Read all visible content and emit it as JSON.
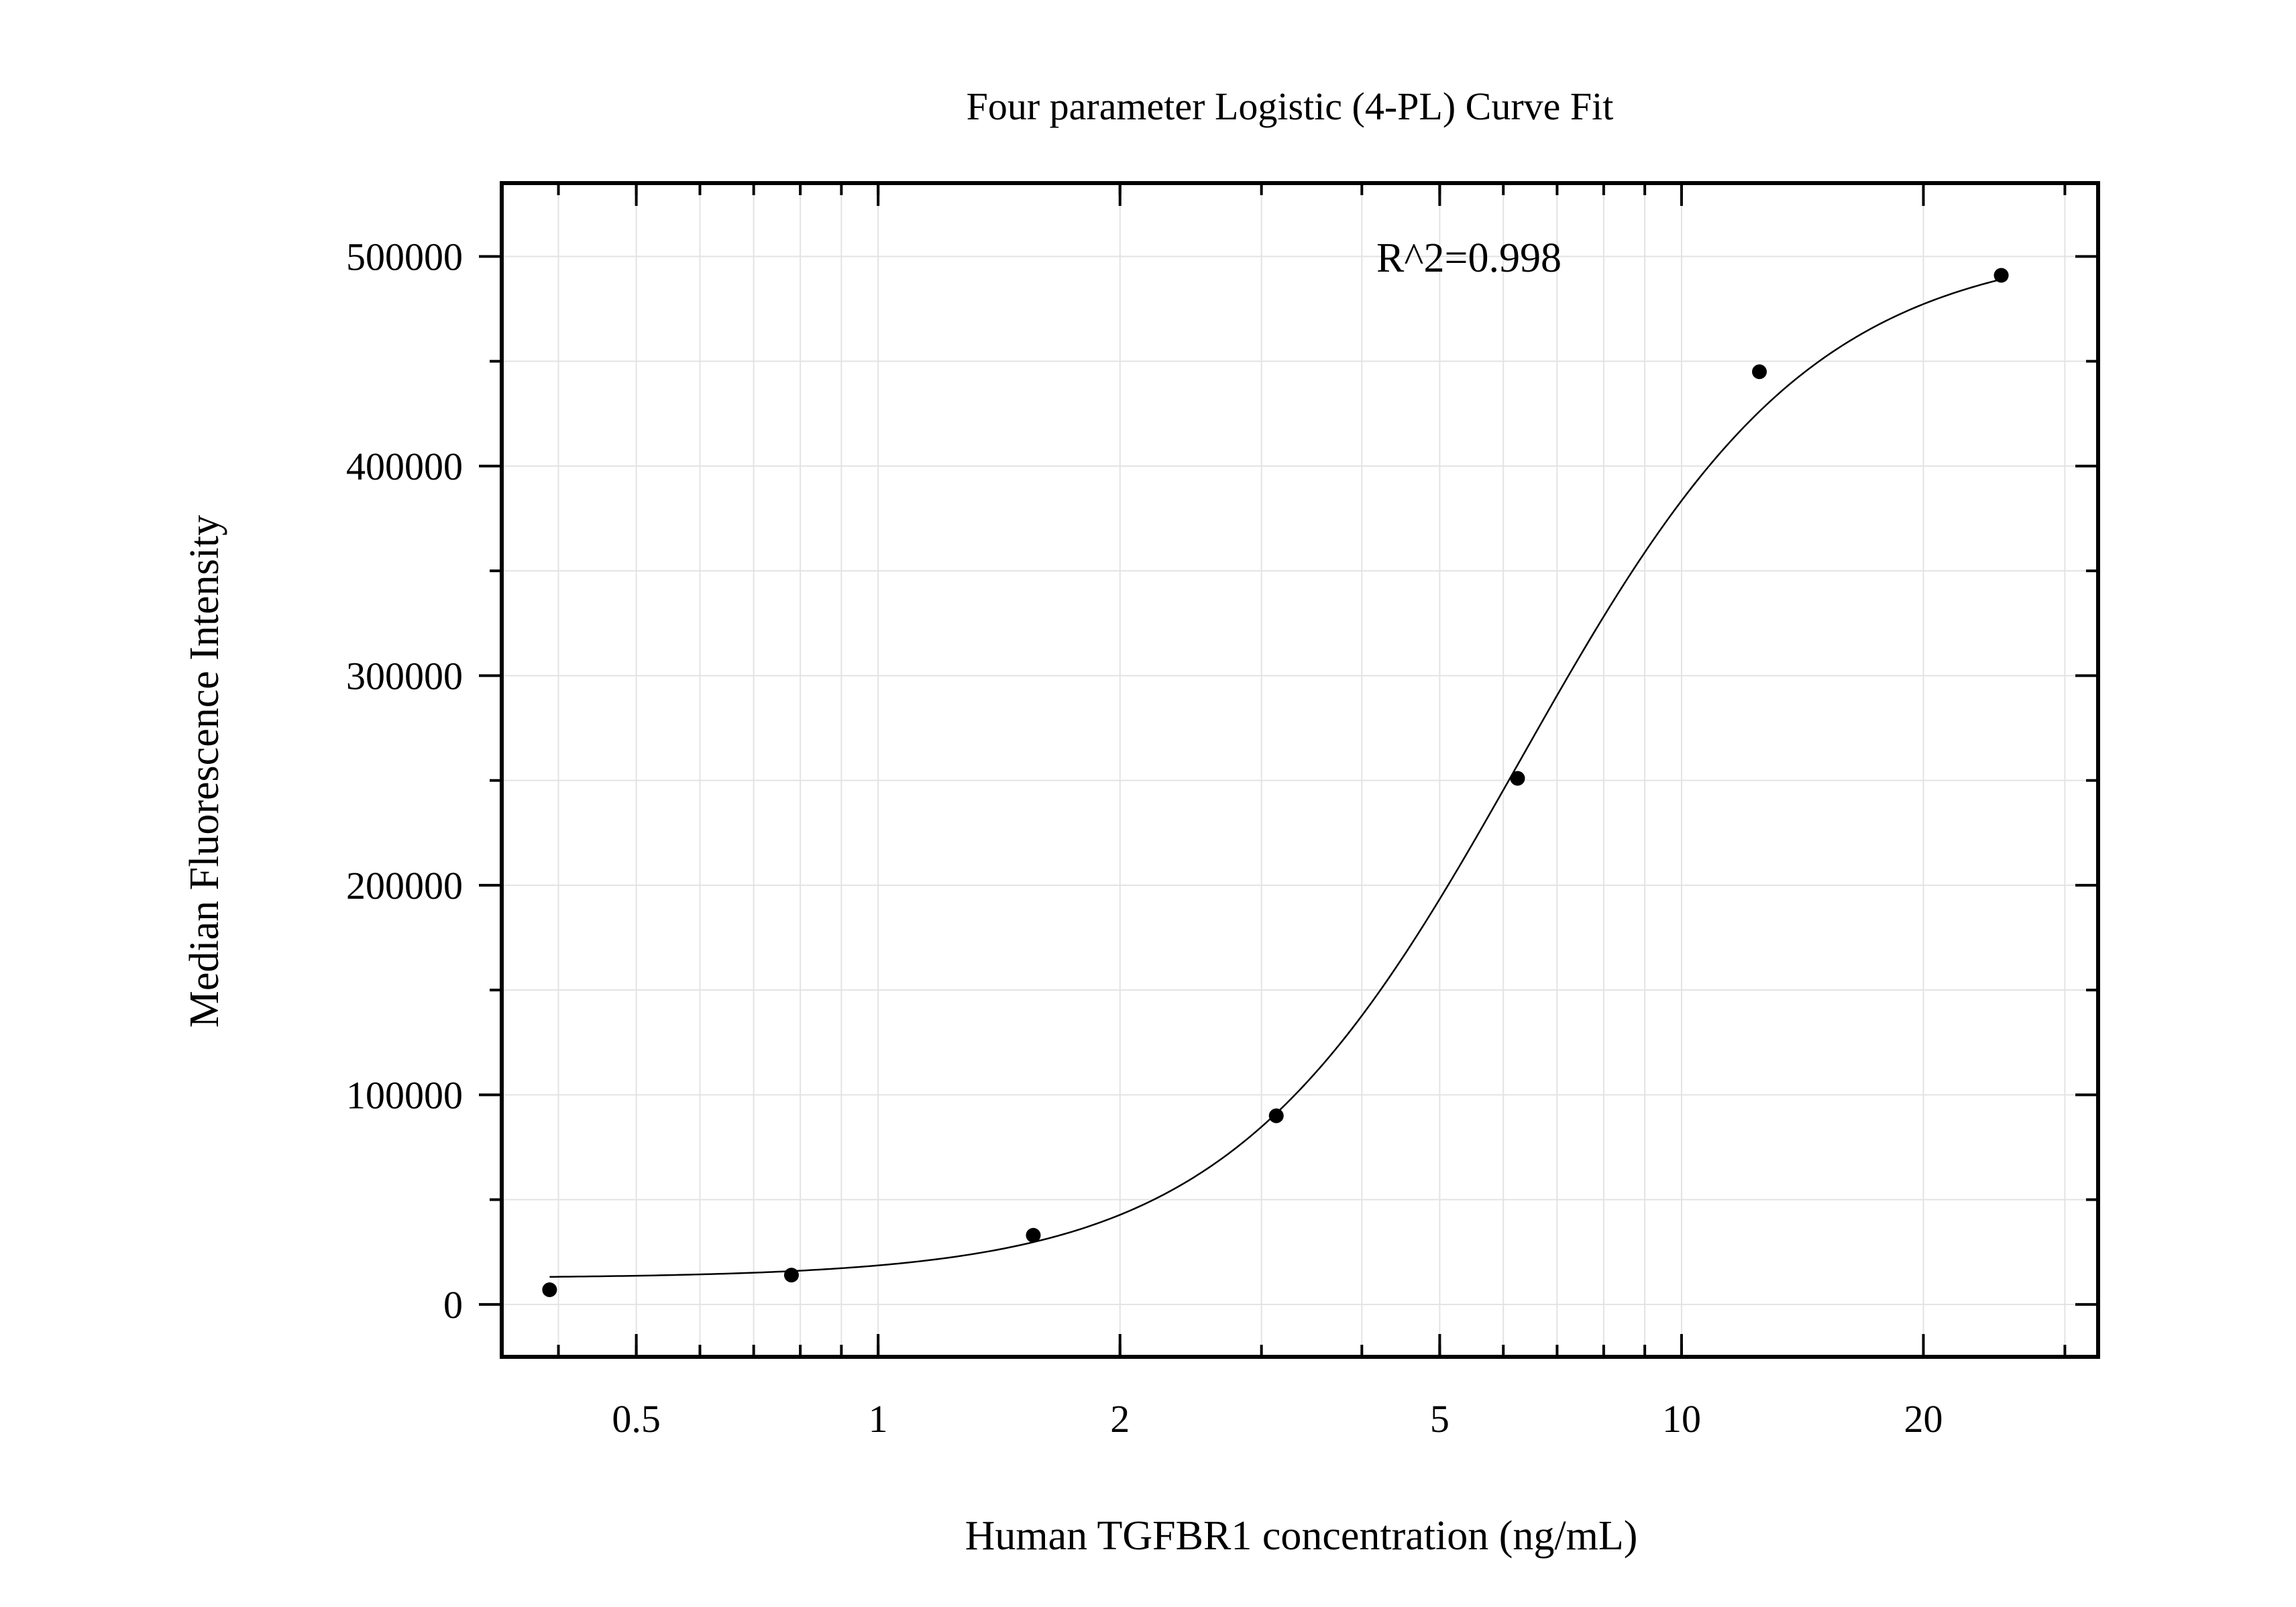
{
  "chart_data": {
    "type": "scatter",
    "title": "Four parameter Logistic (4-PL) Curve Fit",
    "xlabel": "Human TGFBR1 concentration (ng/mL)",
    "ylabel": "Median Fluorescence Intensity",
    "x_scale": "log",
    "xlim": [
      0.34,
      33
    ],
    "ylim": [
      -25000,
      535000
    ],
    "x_ticks": [
      0.5,
      1,
      2,
      5,
      10,
      20
    ],
    "x_tick_labels": [
      "0.5",
      "1",
      "2",
      "5",
      "10",
      "20"
    ],
    "y_ticks": [
      0,
      100000,
      200000,
      300000,
      400000,
      500000
    ],
    "y_tick_labels": [
      "0",
      "100000",
      "200000",
      "300000",
      "400000",
      "500000"
    ],
    "grid": true,
    "annotation": "R^2=0.998",
    "series": [
      {
        "kind": "points",
        "x": [
          0.39,
          0.78,
          1.56,
          3.13,
          6.25,
          12.5,
          25
        ],
        "y": [
          7000,
          14000,
          33000,
          90000,
          251000,
          445000,
          491000
        ]
      },
      {
        "kind": "fit-curve",
        "model": "4PL",
        "x_range": [
          0.39,
          25
        ],
        "params": {
          "bottom": 12500,
          "top": 507000,
          "ec50": 6.3,
          "hill": 2.38
        }
      }
    ],
    "colors": {
      "points": "#000000",
      "curve": "#000000",
      "grid": "#e3e3e3",
      "frame": "#000000"
    }
  }
}
